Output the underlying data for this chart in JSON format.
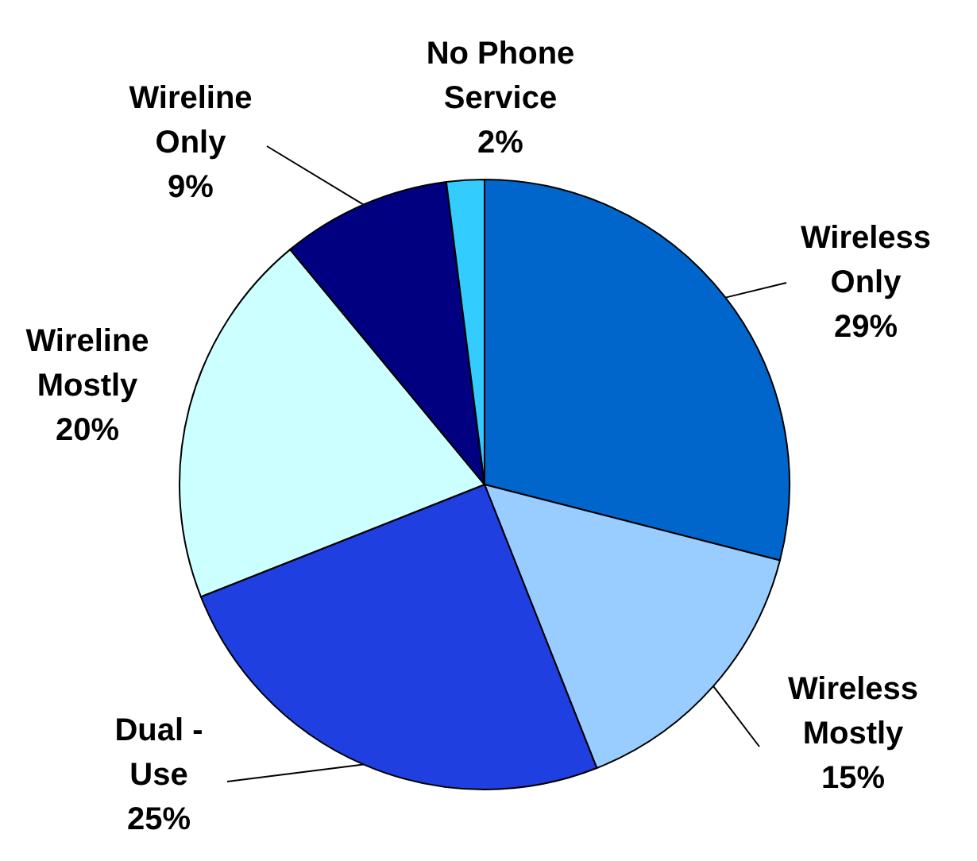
{
  "chart_data": {
    "type": "pie",
    "categories": [
      "Wireless\nOnly",
      "Wireless\nMostly",
      "Dual -\nUse",
      "Wireline\nMostly",
      "Wireline\nOnly",
      "No Phone\nService"
    ],
    "values": [
      29,
      15,
      25,
      20,
      9,
      2
    ],
    "value_labels": [
      "29%",
      "15%",
      "25%",
      "20%",
      "9%",
      "2%"
    ],
    "colors": [
      "#0066cc",
      "#99ccff",
      "#1f3fe0",
      "#ccffff",
      "#000080",
      "#33ccff"
    ],
    "legend": false
  }
}
